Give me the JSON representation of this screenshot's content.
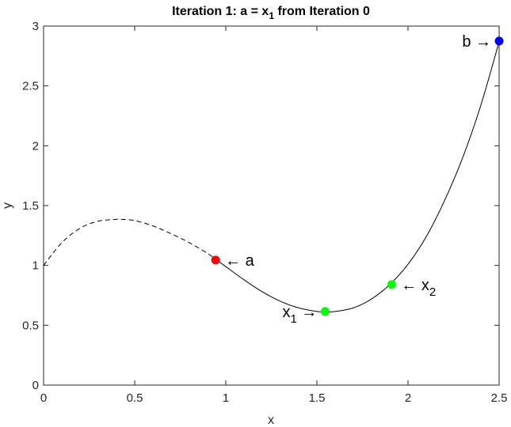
{
  "chart_data": {
    "type": "line",
    "title": {
      "prefix": "Iteration 1: a = x",
      "subscript": "1",
      "suffix": " from Iteration 0"
    },
    "xlabel": "x",
    "ylabel": "y",
    "xlim": [
      0,
      2.5
    ],
    "ylim": [
      0,
      3
    ],
    "xticks": [
      {
        "value": 0,
        "label": "0"
      },
      {
        "value": 0.5,
        "label": "0.5"
      },
      {
        "value": 1,
        "label": "1"
      },
      {
        "value": 1.5,
        "label": "1.5"
      },
      {
        "value": 2,
        "label": "2"
      },
      {
        "value": 2.5,
        "label": "2.5"
      }
    ],
    "yticks": [
      {
        "value": 0,
        "label": "0"
      },
      {
        "value": 0.5,
        "label": "0.5"
      },
      {
        "value": 1,
        "label": "1"
      },
      {
        "value": 1.5,
        "label": "1.5"
      },
      {
        "value": 2,
        "label": "2"
      },
      {
        "value": 2.5,
        "label": "2.5"
      },
      {
        "value": 3,
        "label": "3"
      }
    ],
    "grid": false,
    "curve_dashed": {
      "style": "dashed",
      "color": "#000000",
      "x": [
        0,
        0.1,
        0.2,
        0.3,
        0.4,
        0.43,
        0.5,
        0.6,
        0.7,
        0.8,
        0.9,
        0.955
      ],
      "y": [
        1.0,
        1.19,
        1.31,
        1.37,
        1.385,
        1.385,
        1.375,
        1.33,
        1.265,
        1.19,
        1.1,
        1.04
      ]
    },
    "curve_solid": {
      "style": "solid",
      "color": "#000000",
      "x": [
        0.955,
        1.0,
        1.1,
        1.2,
        1.3,
        1.4,
        1.5,
        1.55,
        1.6,
        1.7,
        1.8,
        1.9,
        2.0,
        2.1,
        2.2,
        2.3,
        2.4,
        2.5
      ],
      "y": [
        1.04,
        0.99,
        0.88,
        0.78,
        0.7,
        0.645,
        0.615,
        0.61,
        0.615,
        0.645,
        0.72,
        0.84,
        1.01,
        1.24,
        1.54,
        1.9,
        2.34,
        2.87
      ]
    },
    "points": [
      {
        "name": "a",
        "x": 0.944,
        "y": 1.045,
        "color": "#ff0000",
        "label": "a",
        "label_sub": "",
        "arrow": "←",
        "side": "right"
      },
      {
        "name": "x1",
        "x": 1.545,
        "y": 0.615,
        "color": "#00ff00",
        "label": "x",
        "label_sub": "1",
        "arrow": "→",
        "side": "left"
      },
      {
        "name": "x2",
        "x": 1.91,
        "y": 0.84,
        "color": "#00ff00",
        "label": "x",
        "label_sub": "2",
        "arrow": "←",
        "side": "right"
      },
      {
        "name": "b",
        "x": 2.5,
        "y": 2.875,
        "color": "#0000ff",
        "label": "b",
        "label_sub": "",
        "arrow": "→",
        "side": "left"
      }
    ]
  }
}
